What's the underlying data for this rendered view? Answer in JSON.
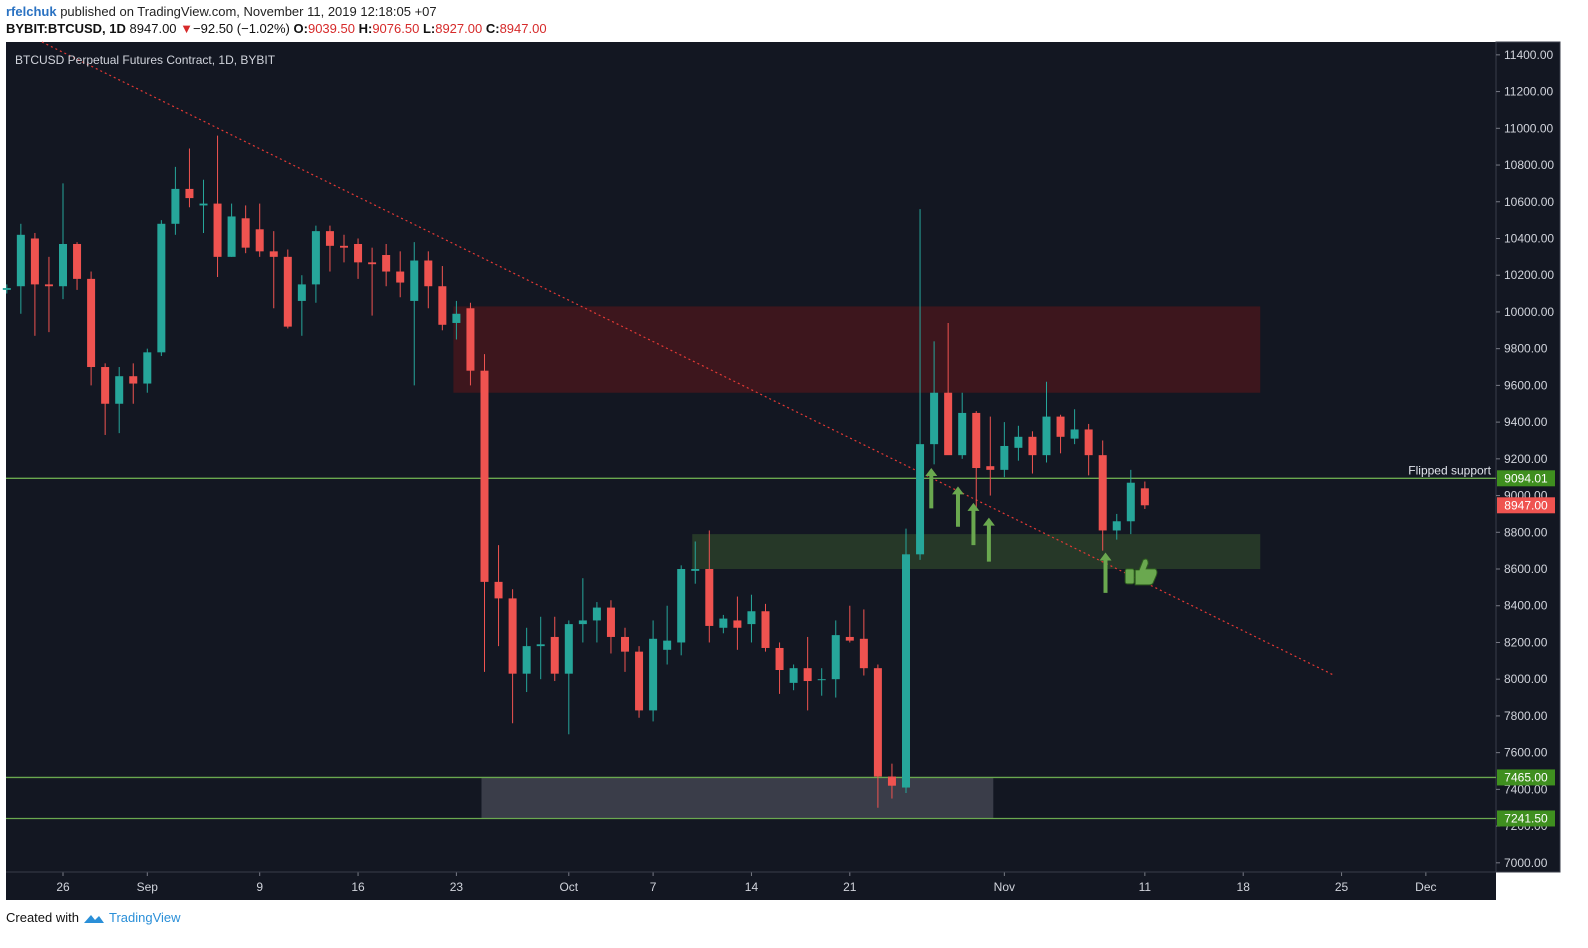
{
  "header": {
    "user": "rfelchuk",
    "published_text": "published on TradingView.com, November 11, 2019 12:18:05 +07",
    "symbol": "BYBIT:BTCUSD, 1D",
    "last": "8947.00",
    "change": "−92.50 (−1.02%)",
    "o_label": "O:",
    "o_value": "9039.50",
    "h_label": "H:",
    "h_value": "9076.50",
    "l_label": "L:",
    "l_value": "8927.00",
    "c_label": "C:",
    "c_value": "8947.00"
  },
  "footer": {
    "created_with": "Created with",
    "brand": "TradingView"
  },
  "colors": {
    "up": "#26a69a",
    "down": "#ef5350",
    "background": "#131722",
    "green_line": "#6aa84f",
    "resistance_zone": "#3d161d",
    "support_zone": "#263828",
    "range_zone": "#3a3d49"
  },
  "chart_data": {
    "type": "candlestick",
    "title": "BTCUSD Perpetual Futures Contract, 1D, BYBIT",
    "price_range": [
      6950,
      11470
    ],
    "y_ticks": [
      7000,
      7200,
      7400,
      7600,
      7800,
      8000,
      8200,
      8400,
      8600,
      8800,
      9000,
      9200,
      9400,
      9600,
      9800,
      10000,
      10200,
      10400,
      10600,
      10800,
      11000,
      11200,
      11400
    ],
    "x_ticks": [
      {
        "day": 0,
        "label": "26"
      },
      {
        "day": 6,
        "label": "Sep"
      },
      {
        "day": 14,
        "label": "9"
      },
      {
        "day": 21,
        "label": "16"
      },
      {
        "day": 28,
        "label": "23"
      },
      {
        "day": 36,
        "label": "Oct"
      },
      {
        "day": 42,
        "label": "7"
      },
      {
        "day": 49,
        "label": "14"
      },
      {
        "day": 56,
        "label": "21"
      },
      {
        "day": 67,
        "label": "Nov"
      },
      {
        "day": 77,
        "label": "11"
      },
      {
        "day": 84,
        "label": "18"
      },
      {
        "day": 91,
        "label": "25"
      },
      {
        "day": 97,
        "label": "Dec"
      }
    ],
    "candles": [
      {
        "day": -4,
        "o": 10120,
        "h": 10150,
        "l": 10100,
        "c": 10130
      },
      {
        "day": -3,
        "o": 10140,
        "h": 10480,
        "l": 9990,
        "c": 10420
      },
      {
        "day": -2,
        "o": 10400,
        "h": 10430,
        "l": 9870,
        "c": 10150
      },
      {
        "day": -1,
        "o": 10150,
        "h": 10300,
        "l": 9890,
        "c": 10140
      },
      {
        "day": 0,
        "o": 10140,
        "h": 10700,
        "l": 10070,
        "c": 10370
      },
      {
        "day": 1,
        "o": 10370,
        "h": 10380,
        "l": 10120,
        "c": 10180
      },
      {
        "day": 2,
        "o": 10180,
        "h": 10220,
        "l": 9600,
        "c": 9700
      },
      {
        "day": 3,
        "o": 9700,
        "h": 9720,
        "l": 9330,
        "c": 9500
      },
      {
        "day": 4,
        "o": 9500,
        "h": 9700,
        "l": 9340,
        "c": 9650
      },
      {
        "day": 5,
        "o": 9650,
        "h": 9720,
        "l": 9500,
        "c": 9610
      },
      {
        "day": 6,
        "o": 9610,
        "h": 9800,
        "l": 9560,
        "c": 9780
      },
      {
        "day": 7,
        "o": 9780,
        "h": 10500,
        "l": 9760,
        "c": 10480
      },
      {
        "day": 8,
        "o": 10480,
        "h": 10790,
        "l": 10420,
        "c": 10670
      },
      {
        "day": 9,
        "o": 10670,
        "h": 10890,
        "l": 10570,
        "c": 10620
      },
      {
        "day": 10,
        "o": 10580,
        "h": 10720,
        "l": 10430,
        "c": 10590
      },
      {
        "day": 11,
        "o": 10590,
        "h": 10960,
        "l": 10190,
        "c": 10300
      },
      {
        "day": 12,
        "o": 10300,
        "h": 10590,
        "l": 10300,
        "c": 10520
      },
      {
        "day": 13,
        "o": 10510,
        "h": 10580,
        "l": 10320,
        "c": 10350
      },
      {
        "day": 14,
        "o": 10450,
        "h": 10590,
        "l": 10300,
        "c": 10330
      },
      {
        "day": 15,
        "o": 10330,
        "h": 10440,
        "l": 10020,
        "c": 10300
      },
      {
        "day": 16,
        "o": 10300,
        "h": 10340,
        "l": 9910,
        "c": 9920
      },
      {
        "day": 17,
        "o": 10060,
        "h": 10200,
        "l": 9870,
        "c": 10150
      },
      {
        "day": 18,
        "o": 10150,
        "h": 10470,
        "l": 10050,
        "c": 10440
      },
      {
        "day": 19,
        "o": 10440,
        "h": 10470,
        "l": 10220,
        "c": 10360
      },
      {
        "day": 20,
        "o": 10360,
        "h": 10420,
        "l": 10270,
        "c": 10350
      },
      {
        "day": 21,
        "o": 10370,
        "h": 10400,
        "l": 10180,
        "c": 10270
      },
      {
        "day": 22,
        "o": 10270,
        "h": 10350,
        "l": 9980,
        "c": 10260
      },
      {
        "day": 23,
        "o": 10310,
        "h": 10370,
        "l": 10140,
        "c": 10220
      },
      {
        "day": 24,
        "o": 10220,
        "h": 10330,
        "l": 10080,
        "c": 10160
      },
      {
        "day": 25,
        "o": 10060,
        "h": 10380,
        "l": 9600,
        "c": 10280
      },
      {
        "day": 26,
        "o": 10280,
        "h": 10330,
        "l": 10020,
        "c": 10140
      },
      {
        "day": 27,
        "o": 10140,
        "h": 10250,
        "l": 9900,
        "c": 9930
      },
      {
        "day": 28,
        "o": 9940,
        "h": 10060,
        "l": 9850,
        "c": 9990
      },
      {
        "day": 29,
        "o": 10020,
        "h": 10050,
        "l": 9600,
        "c": 9680
      },
      {
        "day": 30,
        "o": 9680,
        "h": 9770,
        "l": 8040,
        "c": 8530
      },
      {
        "day": 31,
        "o": 8530,
        "h": 8730,
        "l": 8180,
        "c": 8440
      },
      {
        "day": 32,
        "o": 8440,
        "h": 8490,
        "l": 7760,
        "c": 8030
      },
      {
        "day": 33,
        "o": 8030,
        "h": 8280,
        "l": 7930,
        "c": 8180
      },
      {
        "day": 34,
        "o": 8180,
        "h": 8340,
        "l": 8000,
        "c": 8190
      },
      {
        "day": 35,
        "o": 8230,
        "h": 8340,
        "l": 7990,
        "c": 8030
      },
      {
        "day": 36,
        "o": 8030,
        "h": 8320,
        "l": 7700,
        "c": 8300
      },
      {
        "day": 37,
        "o": 8300,
        "h": 8550,
        "l": 8200,
        "c": 8320
      },
      {
        "day": 38,
        "o": 8320,
        "h": 8420,
        "l": 8200,
        "c": 8390
      },
      {
        "day": 39,
        "o": 8390,
        "h": 8430,
        "l": 8140,
        "c": 8230
      },
      {
        "day": 40,
        "o": 8230,
        "h": 8280,
        "l": 8040,
        "c": 8150
      },
      {
        "day": 41,
        "o": 8150,
        "h": 8180,
        "l": 7790,
        "c": 7830
      },
      {
        "day": 42,
        "o": 7830,
        "h": 8320,
        "l": 7770,
        "c": 8220
      },
      {
        "day": 43,
        "o": 8160,
        "h": 8400,
        "l": 8080,
        "c": 8210
      },
      {
        "day": 44,
        "o": 8200,
        "h": 8620,
        "l": 8130,
        "c": 8600
      },
      {
        "day": 45,
        "o": 8590,
        "h": 8750,
        "l": 8520,
        "c": 8600
      },
      {
        "day": 46,
        "o": 8600,
        "h": 8810,
        "l": 8200,
        "c": 8290
      },
      {
        "day": 47,
        "o": 8280,
        "h": 8350,
        "l": 8250,
        "c": 8330
      },
      {
        "day": 48,
        "o": 8320,
        "h": 8450,
        "l": 8160,
        "c": 8280
      },
      {
        "day": 49,
        "o": 8300,
        "h": 8460,
        "l": 8200,
        "c": 8370
      },
      {
        "day": 50,
        "o": 8370,
        "h": 8410,
        "l": 8150,
        "c": 8170
      },
      {
        "day": 51,
        "o": 8170,
        "h": 8200,
        "l": 7920,
        "c": 8050
      },
      {
        "day": 52,
        "o": 7980,
        "h": 8080,
        "l": 7940,
        "c": 8060
      },
      {
        "day": 53,
        "o": 8060,
        "h": 8230,
        "l": 7830,
        "c": 7990
      },
      {
        "day": 54,
        "o": 8000,
        "h": 8060,
        "l": 7910,
        "c": 8000
      },
      {
        "day": 55,
        "o": 8000,
        "h": 8320,
        "l": 7900,
        "c": 8240
      },
      {
        "day": 56,
        "o": 8230,
        "h": 8400,
        "l": 8200,
        "c": 8210
      },
      {
        "day": 57,
        "o": 8220,
        "h": 8380,
        "l": 8020,
        "c": 8060
      },
      {
        "day": 58,
        "o": 8060,
        "h": 8080,
        "l": 7300,
        "c": 7470
      },
      {
        "day": 59,
        "o": 7470,
        "h": 7540,
        "l": 7350,
        "c": 7420
      },
      {
        "day": 60,
        "o": 7410,
        "h": 8820,
        "l": 7380,
        "c": 8680
      },
      {
        "day": 61,
        "o": 8680,
        "h": 10560,
        "l": 8650,
        "c": 9280
      },
      {
        "day": 62,
        "o": 9280,
        "h": 9840,
        "l": 9170,
        "c": 9560
      },
      {
        "day": 63,
        "o": 9560,
        "h": 9940,
        "l": 9230,
        "c": 9220
      },
      {
        "day": 64,
        "o": 9220,
        "h": 9560,
        "l": 9200,
        "c": 9450
      },
      {
        "day": 65,
        "o": 9450,
        "h": 9460,
        "l": 8920,
        "c": 9150
      },
      {
        "day": 66,
        "o": 9160,
        "h": 9430,
        "l": 9000,
        "c": 9140
      },
      {
        "day": 67,
        "o": 9140,
        "h": 9400,
        "l": 9100,
        "c": 9270
      },
      {
        "day": 68,
        "o": 9260,
        "h": 9380,
        "l": 9190,
        "c": 9320
      },
      {
        "day": 69,
        "o": 9320,
        "h": 9350,
        "l": 9120,
        "c": 9220
      },
      {
        "day": 70,
        "o": 9220,
        "h": 9620,
        "l": 9180,
        "c": 9430
      },
      {
        "day": 71,
        "o": 9430,
        "h": 9440,
        "l": 9230,
        "c": 9320
      },
      {
        "day": 72,
        "o": 9310,
        "h": 9470,
        "l": 9280,
        "c": 9360
      },
      {
        "day": 73,
        "o": 9360,
        "h": 9390,
        "l": 9110,
        "c": 9220
      },
      {
        "day": 74,
        "o": 9220,
        "h": 9300,
        "l": 8700,
        "c": 8810
      },
      {
        "day": 75,
        "o": 8810,
        "h": 8900,
        "l": 8760,
        "c": 8860
      },
      {
        "day": 76,
        "o": 8860,
        "h": 9140,
        "l": 8790,
        "c": 9070
      },
      {
        "day": 77,
        "o": 9039.5,
        "h": 9076.5,
        "l": 8927,
        "c": 8947
      }
    ],
    "zones": [
      {
        "name": "resistance",
        "from_day": 28,
        "to_day": 85,
        "low": 9560,
        "high": 10030
      },
      {
        "name": "support",
        "from_day": 45,
        "to_day": 85,
        "low": 8600,
        "high": 8790
      },
      {
        "name": "range",
        "from_day": 30,
        "to_day": 66,
        "low": 7241.5,
        "high": 7465
      }
    ],
    "horizontal_lines": [
      {
        "price": 9094.01,
        "label": "9094.01",
        "annotation": "Flipped support"
      },
      {
        "price": 7465.0,
        "label": "7465.00"
      },
      {
        "price": 7241.5,
        "label": "7241.50"
      }
    ],
    "last_price": {
      "price": 8947.0,
      "label": "8947.00"
    },
    "trendline": {
      "from": {
        "day": -1.5,
        "price": 11470
      },
      "to": {
        "day": 90.5,
        "price": 8020
      }
    },
    "arrows": [
      {
        "day": 61.8,
        "low": 8930,
        "high": 9150
      },
      {
        "day": 63.7,
        "low": 8830,
        "high": 9050
      },
      {
        "day": 64.8,
        "low": 8730,
        "high": 8960
      },
      {
        "day": 65.9,
        "low": 8640,
        "high": 8880
      },
      {
        "day": 74.2,
        "low": 8470,
        "high": 8690
      }
    ],
    "thumb_day": 75.6,
    "thumb_price": 8590
  }
}
